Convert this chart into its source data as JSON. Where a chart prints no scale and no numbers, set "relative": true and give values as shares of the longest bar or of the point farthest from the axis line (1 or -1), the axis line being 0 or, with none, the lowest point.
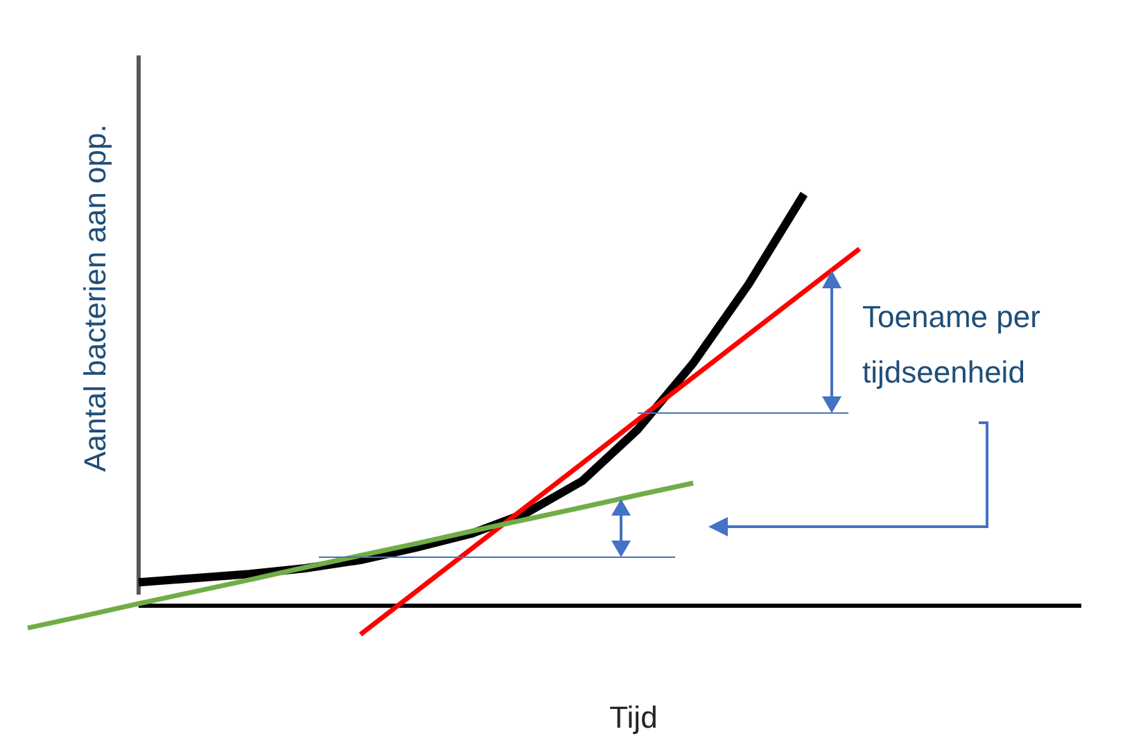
{
  "chart_data": {
    "type": "line",
    "relative": true,
    "tick_labels": false,
    "xlabel": "Tijd",
    "ylabel": "Aantal bacterien aan opp.",
    "annotations": [
      "Toename per tijdseenheid"
    ],
    "categories": [
      null,
      null,
      null,
      null,
      null,
      null,
      null,
      null,
      null,
      null,
      null,
      null,
      null,
      null,
      null,
      null,
      null,
      null,
      null,
      null
    ],
    "series": [
      {
        "color": "#000000",
        "values": [
          null,
          null,
          0.057,
          0.067,
          0.077,
          0.091,
          0.111,
          0.141,
          0.175,
          0.226,
          0.303,
          0.428,
          0.589,
          0.781,
          1,
          null,
          null,
          null,
          null,
          null
        ]
      },
      {
        "color": "#ff0000",
        "values": [
          null,
          null,
          null,
          null,
          null,
          null,
          -0.07,
          0.034,
          0.138,
          0.242,
          0.346,
          0.451,
          0.555,
          0.659,
          0.763,
          0.867,
          null,
          null,
          null,
          null
        ]
      },
      {
        "color": "#70ad47",
        "values": [
          -0.054,
          -0.025,
          0.005,
          0.034,
          0.063,
          0.093,
          0.122,
          0.151,
          0.181,
          0.21,
          0.239,
          0.269,
          0.298,
          null,
          null,
          null,
          null,
          null,
          null,
          null
        ]
      }
    ]
  }
}
